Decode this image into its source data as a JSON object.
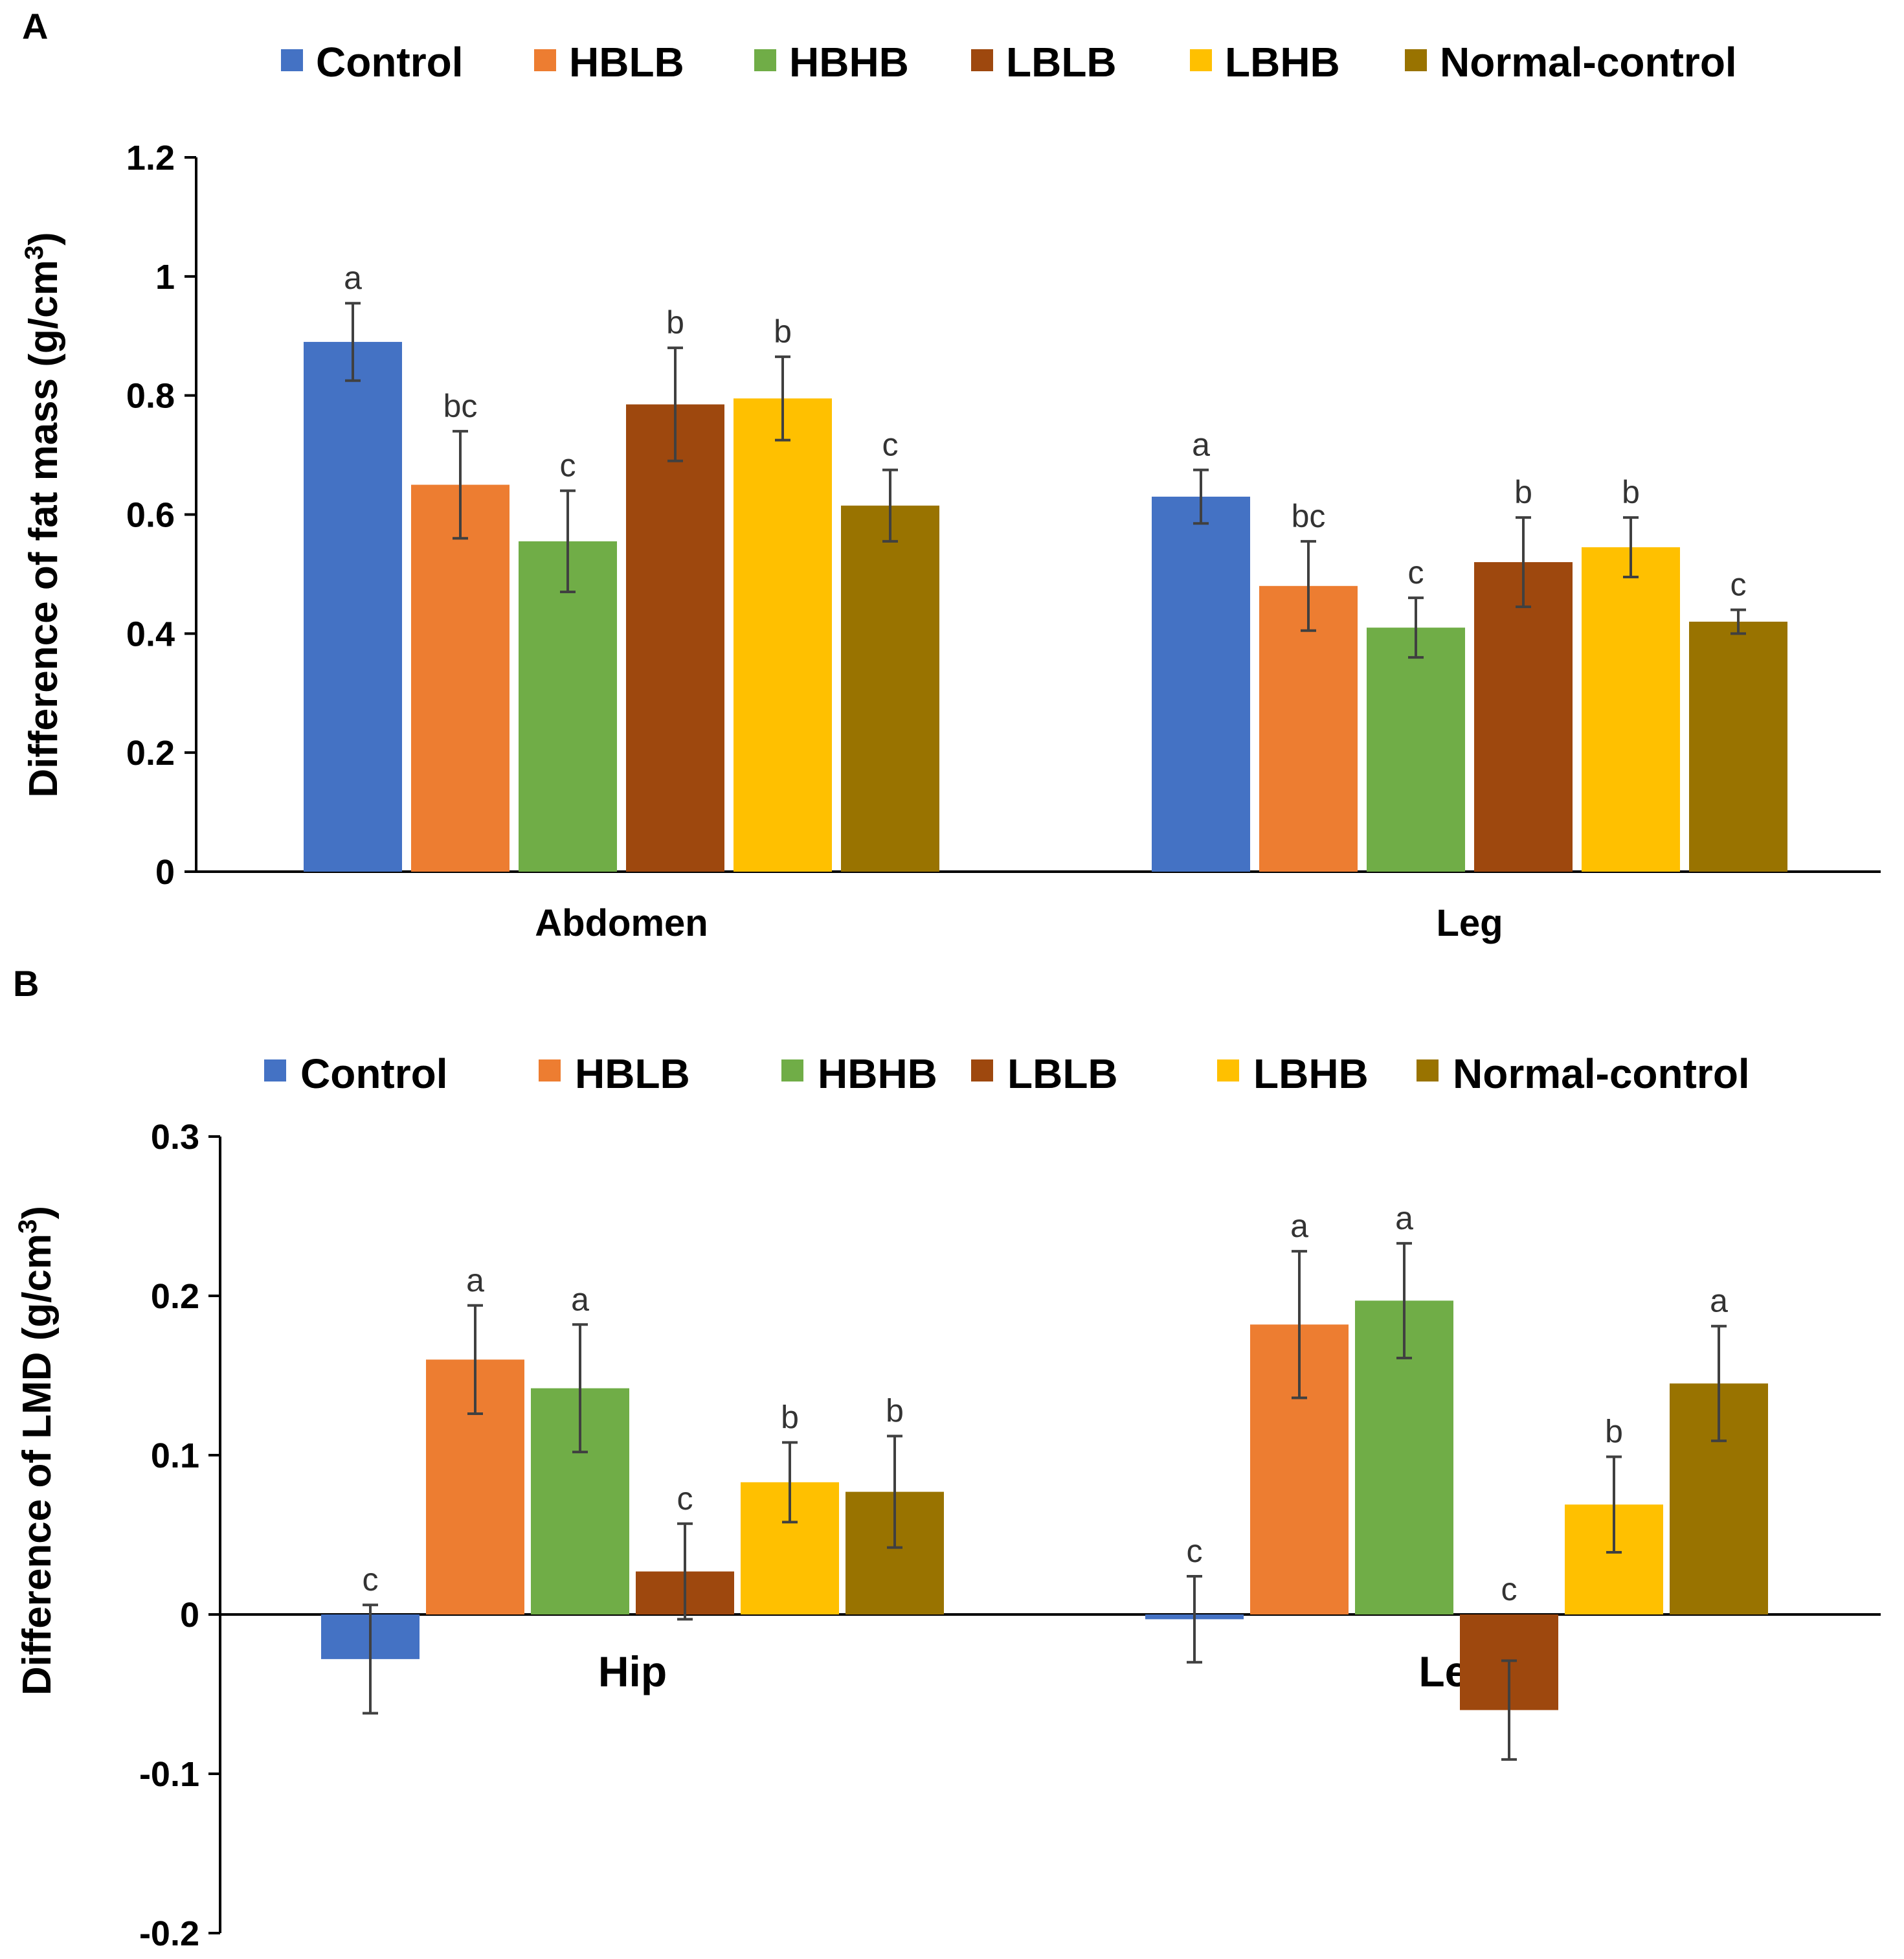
{
  "colors": {
    "Control": "#4472C4",
    "HBLB": "#ED7D31",
    "HBHB": "#70AD47",
    "LBLB": "#9E480E",
    "LBHB": "#FFC000",
    "Normal-control": "#997300"
  },
  "chart_data": [
    {
      "panel": "A",
      "type": "bar",
      "title": "",
      "xlabel": "",
      "ylabel": "Difference of fat mass (g/cm",
      "ylabel_sup": "3",
      "ylabel_close": ")",
      "ylim": [
        0,
        1.2
      ],
      "ticks": [
        0,
        0.2,
        0.4,
        0.6,
        0.8,
        1,
        1.2
      ],
      "tick_labels": [
        "0",
        "0.2",
        "0.4",
        "0.6",
        "0.8",
        "1",
        "1.2"
      ],
      "categories": [
        "Abdomen",
        "Leg"
      ],
      "legend": [
        "Control",
        "HBLB",
        "HBHB",
        "LBLB",
        "LBHB",
        "Normal-control"
      ],
      "legend_position": "top",
      "series": [
        {
          "name": "Control",
          "values": [
            0.89,
            0.63
          ],
          "errors": [
            0.065,
            0.045
          ],
          "labels": [
            "a",
            "a"
          ]
        },
        {
          "name": "HBLB",
          "values": [
            0.65,
            0.48
          ],
          "errors": [
            0.09,
            0.075
          ],
          "labels": [
            "bc",
            "bc"
          ]
        },
        {
          "name": "HBHB",
          "values": [
            0.555,
            0.41
          ],
          "errors": [
            0.085,
            0.05
          ],
          "labels": [
            "c",
            "c"
          ]
        },
        {
          "name": "LBLB",
          "values": [
            0.785,
            0.52
          ],
          "errors": [
            0.095,
            0.075
          ],
          "labels": [
            "b",
            "b"
          ]
        },
        {
          "name": "LBHB",
          "values": [
            0.795,
            0.545
          ],
          "errors": [
            0.07,
            0.05
          ],
          "labels": [
            "b",
            "b"
          ]
        },
        {
          "name": "Normal-control",
          "values": [
            0.615,
            0.42
          ],
          "errors": [
            0.06,
            0.02
          ],
          "labels": [
            "c",
            "c"
          ]
        }
      ]
    },
    {
      "panel": "B",
      "type": "bar",
      "title": "",
      "xlabel": "",
      "ylabel": "Difference of LMD (g/cm",
      "ylabel_sup": "3",
      "ylabel_close": ")",
      "ylim": [
        -0.2,
        0.3
      ],
      "ticks": [
        -0.2,
        -0.1,
        0,
        0.1,
        0.2,
        0.3
      ],
      "tick_labels": [
        "-0.2",
        "-0.1",
        "0",
        "0.1",
        "0.2",
        "0.3"
      ],
      "categories": [
        "Hip",
        "Leg"
      ],
      "legend": [
        "Control",
        "HBLB",
        "HBHB",
        "LBLB",
        "LBHB",
        "Normal-control"
      ],
      "legend_position": "top",
      "series": [
        {
          "name": "Control",
          "values": [
            -0.028,
            -0.003
          ],
          "errors": [
            0.034,
            0.027
          ],
          "labels": [
            "c",
            "c"
          ]
        },
        {
          "name": "HBLB",
          "values": [
            0.16,
            0.182
          ],
          "errors": [
            0.034,
            0.046
          ],
          "labels": [
            "a",
            "a"
          ]
        },
        {
          "name": "HBHB",
          "values": [
            0.142,
            0.197
          ],
          "errors": [
            0.04,
            0.036
          ],
          "labels": [
            "a",
            "a"
          ]
        },
        {
          "name": "LBLB",
          "values": [
            0.027,
            -0.06
          ],
          "errors": [
            0.03,
            0.031
          ],
          "labels": [
            "c",
            "c"
          ]
        },
        {
          "name": "LBHB",
          "values": [
            0.083,
            0.069
          ],
          "errors": [
            0.025,
            0.03
          ],
          "labels": [
            "b",
            "b"
          ]
        },
        {
          "name": "Normal-control",
          "values": [
            0.077,
            0.145
          ],
          "errors": [
            0.035,
            0.036
          ],
          "labels": [
            "b",
            "a"
          ]
        }
      ]
    }
  ]
}
